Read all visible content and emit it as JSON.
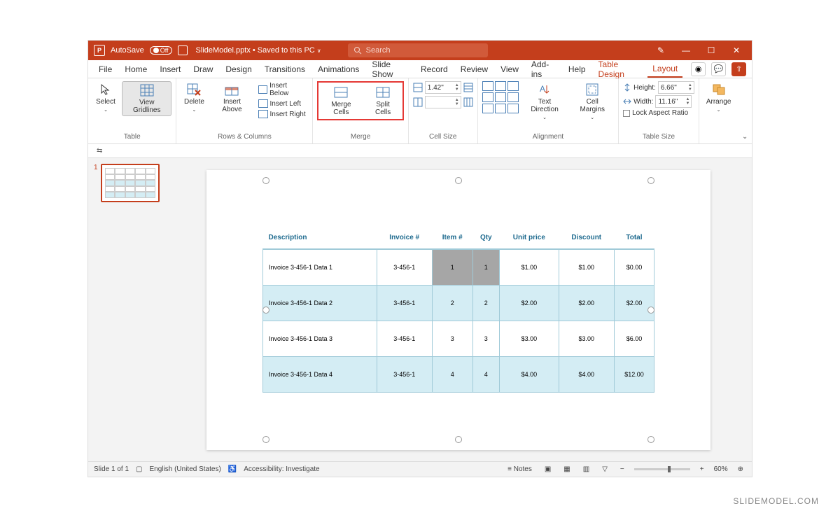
{
  "titlebar": {
    "autosave_label": "AutoSave",
    "autosave_state": "Off",
    "filename": "SlideModel.pptx",
    "save_state": "Saved to this PC",
    "search_placeholder": "Search"
  },
  "tabs": [
    "File",
    "Home",
    "Insert",
    "Draw",
    "Design",
    "Transitions",
    "Animations",
    "Slide Show",
    "Record",
    "Review",
    "View",
    "Add-ins",
    "Help",
    "Table Design",
    "Layout"
  ],
  "active_tab": "Layout",
  "context_tabs": [
    "Table Design",
    "Layout"
  ],
  "ribbon": {
    "table": {
      "select": "Select",
      "gridlines": "View Gridlines",
      "label": "Table"
    },
    "rowscols": {
      "delete": "Delete",
      "above": "Insert Above",
      "below": "Insert Below",
      "left": "Insert Left",
      "right": "Insert Right",
      "label": "Rows & Columns"
    },
    "merge": {
      "merge": "Merge Cells",
      "split": "Split Cells",
      "label": "Merge"
    },
    "cellsize": {
      "h": "1.42\"",
      "w": "",
      "label": "Cell Size"
    },
    "alignment": {
      "textdir": "Text Direction",
      "margins": "Cell Margins",
      "label": "Alignment"
    },
    "tablesize": {
      "hlabel": "Height:",
      "hval": "6.66\"",
      "wlabel": "Width:",
      "wval": "11.16\"",
      "lock": "Lock Aspect Ratio",
      "label": "Table Size"
    },
    "arrange": {
      "arrange": "Arrange"
    }
  },
  "thumb": {
    "num": "1"
  },
  "table": {
    "headers": [
      "Description",
      "Invoice #",
      "Item #",
      "Qty",
      "Unit price",
      "Discount",
      "Total"
    ],
    "rows": [
      {
        "cells": [
          "Invoice 3-456-1 Data 1",
          "3-456-1",
          "1",
          "1",
          "$1.00",
          "$1.00",
          "$0.00"
        ],
        "alt": false,
        "selected": [
          2,
          3
        ]
      },
      {
        "cells": [
          "Invoice 3-456-1 Data 2",
          "3-456-1",
          "2",
          "2",
          "$2.00",
          "$2.00",
          "$2.00"
        ],
        "alt": true,
        "selected": []
      },
      {
        "cells": [
          "Invoice 3-456-1 Data 3",
          "3-456-1",
          "3",
          "3",
          "$3.00",
          "$3.00",
          "$6.00"
        ],
        "alt": false,
        "selected": []
      },
      {
        "cells": [
          "Invoice 3-456-1 Data 4",
          "3-456-1",
          "4",
          "4",
          "$4.00",
          "$4.00",
          "$12.00"
        ],
        "alt": true,
        "selected": []
      }
    ],
    "colors": {
      "header_text": "#1f6b8f",
      "border": "#a0cad8",
      "alt_bg": "#d4edf4",
      "sel_bg": "#a6a6a6"
    }
  },
  "statusbar": {
    "slide": "Slide 1 of 1",
    "lang": "English (United States)",
    "access": "Accessibility: Investigate",
    "notes": "Notes",
    "zoom": "60%"
  },
  "watermark": "SLIDEMODEL.COM"
}
